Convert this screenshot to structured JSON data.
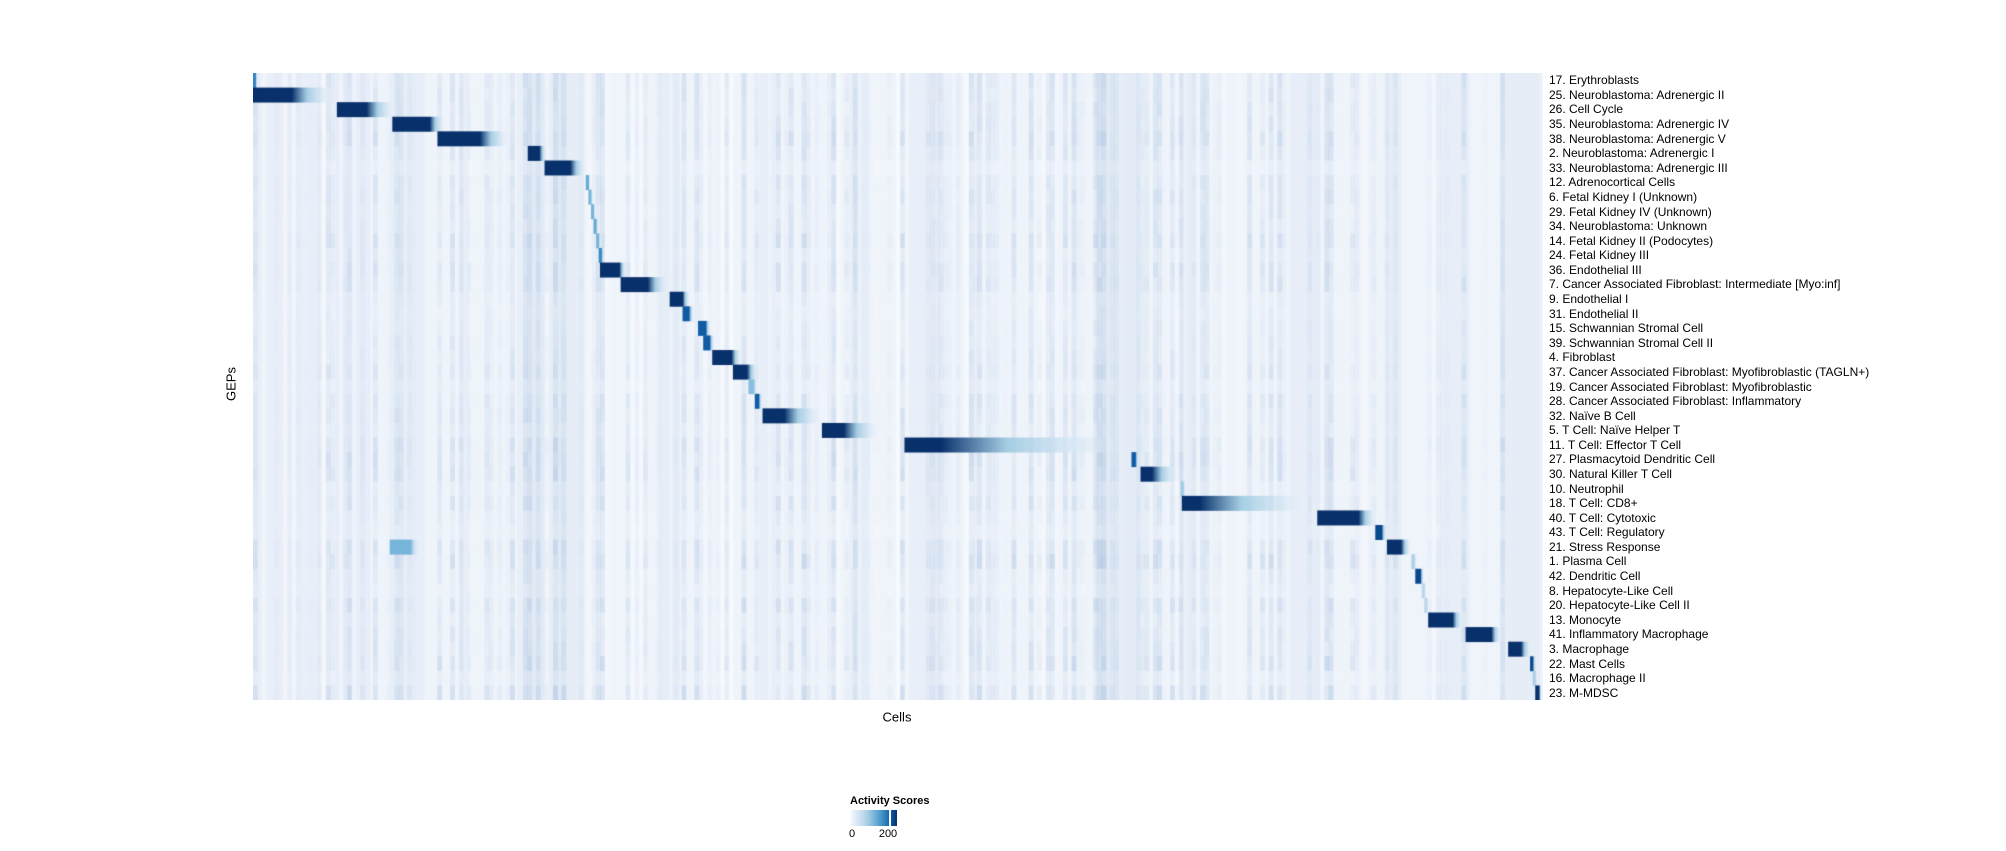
{
  "figure": {
    "xlabel": "Cells",
    "ylabel": "GEPs",
    "legend": {
      "title": "Activity Scores",
      "min_label": "0",
      "max_label": "200"
    }
  },
  "chart_data": {
    "type": "heatmap",
    "title": "",
    "xlabel": "Cells",
    "ylabel": "GEPs",
    "colorbar": {
      "label": "Activity Scores",
      "min": 0,
      "max": 200,
      "tick_values": [
        0,
        200
      ],
      "colormap": "Blues (white to dark navy)"
    },
    "colors": {
      "background": "#eff4fb",
      "min": "#f7fbff",
      "mid": "#4292c6",
      "max": "#08306b",
      "noise": [
        140,
        172,
        212
      ],
      "band": [
        130,
        165,
        210
      ]
    },
    "n_rows": 43,
    "noise_seed": 11,
    "rows": [
      {
        "label": "17. Erythroblasts",
        "blocks": [
          [
            0.0,
            0.002,
            0.004,
            0.75
          ]
        ]
      },
      {
        "label": "25. Neuroblastoma: Adrenergic II",
        "blocks": [
          [
            0.0,
            0.03,
            0.064,
            1
          ]
        ]
      },
      {
        "label": "26. Cell Cycle",
        "blocks": [
          [
            0.065,
            0.088,
            0.112,
            1
          ]
        ]
      },
      {
        "label": "35. Neuroblastoma: Adrenergic IV",
        "blocks": [
          [
            0.108,
            0.137,
            0.149,
            1
          ]
        ]
      },
      {
        "label": "38. Neuroblastoma: Adrenergic V",
        "blocks": [
          [
            0.143,
            0.176,
            0.2,
            1
          ]
        ]
      },
      {
        "label": "2. Neuroblastoma: Adrenergic I",
        "blocks": [
          [
            0.213,
            0.222,
            0.228,
            1
          ]
        ]
      },
      {
        "label": "33. Neuroblastoma: Adrenergic III",
        "blocks": [
          [
            0.226,
            0.246,
            0.259,
            1
          ]
        ]
      },
      {
        "label": "12. Adrenocortical Cells",
        "blocks": [
          [
            0.258,
            0.26,
            0.262,
            0.6
          ]
        ]
      },
      {
        "label": "6. Fetal Kidney I (Unknown)",
        "blocks": [
          [
            0.26,
            0.262,
            0.264,
            0.55
          ]
        ]
      },
      {
        "label": "29. Fetal Kidney IV (Unknown)",
        "blocks": [
          [
            0.262,
            0.264,
            0.266,
            0.55
          ]
        ]
      },
      {
        "label": "34. Neuroblastoma: Unknown",
        "blocks": [
          [
            0.264,
            0.266,
            0.268,
            0.6
          ]
        ]
      },
      {
        "label": "14. Fetal Kidney II (Podocytes)",
        "blocks": [
          [
            0.266,
            0.268,
            0.27,
            0.55
          ]
        ]
      },
      {
        "label": "24. Fetal Kidney III",
        "blocks": [
          [
            0.268,
            0.27,
            0.273,
            0.75
          ]
        ]
      },
      {
        "label": "36. Endothelial III",
        "blocks": [
          [
            0.269,
            0.284,
            0.29,
            1
          ]
        ]
      },
      {
        "label": "7. Cancer Associated Fibroblast: Intermediate [Myo:inf]",
        "blocks": [
          [
            0.285,
            0.306,
            0.323,
            1
          ]
        ]
      },
      {
        "label": "9. Endothelial I",
        "blocks": [
          [
            0.323,
            0.333,
            0.339,
            1
          ]
        ]
      },
      {
        "label": "31. Endothelial II",
        "blocks": [
          [
            0.333,
            0.338,
            0.342,
            0.9
          ]
        ]
      },
      {
        "label": "15. Schwannian Stromal Cell",
        "blocks": [
          [
            0.345,
            0.351,
            0.355,
            0.9
          ]
        ]
      },
      {
        "label": "39. Schwannian Stromal Cell II",
        "blocks": [
          [
            0.349,
            0.354,
            0.358,
            0.9
          ]
        ]
      },
      {
        "label": "4. Fibroblast",
        "blocks": [
          [
            0.356,
            0.371,
            0.379,
            1
          ]
        ]
      },
      {
        "label": "37. Cancer Associated Fibroblast: Myofibroblastic (TAGLN+)",
        "blocks": [
          [
            0.372,
            0.383,
            0.392,
            1
          ]
        ]
      },
      {
        "label": "19. Cancer Associated Fibroblast: Myofibroblastic",
        "blocks": [
          [
            0.384,
            0.388,
            0.392,
            0.5
          ]
        ]
      },
      {
        "label": "28. Cancer Associated Fibroblast: Inflammatory",
        "blocks": [
          [
            0.389,
            0.392,
            0.395,
            0.9
          ]
        ]
      },
      {
        "label": "32. Naïve B Cell",
        "blocks": [
          [
            0.395,
            0.412,
            0.442,
            1
          ]
        ]
      },
      {
        "label": "5. T Cell: Naïve Helper T",
        "blocks": [
          [
            0.441,
            0.458,
            0.487,
            1
          ]
        ]
      },
      {
        "label": "11. T Cell: Effector T Cell",
        "blocks": [
          [
            0.505,
            0.533,
            0.682,
            1
          ]
        ]
      },
      {
        "label": "27. Plasmacytoid Dendritic Cell",
        "blocks": [
          [
            0.681,
            0.684,
            0.687,
            0.9
          ]
        ]
      },
      {
        "label": "30. Natural Killer T Cell",
        "blocks": [
          [
            0.688,
            0.697,
            0.718,
            1
          ]
        ]
      },
      {
        "label": "10. Neutrophil",
        "blocks": [
          [
            0.719,
            0.721,
            0.724,
            0.45
          ]
        ]
      },
      {
        "label": "18. T Cell: CD8+",
        "blocks": [
          [
            0.72,
            0.734,
            0.826,
            1
          ]
        ]
      },
      {
        "label": "40. T Cell: Cytotoxic",
        "blocks": [
          [
            0.825,
            0.857,
            0.872,
            1
          ]
        ]
      },
      {
        "label": "43. T Cell: Regulatory",
        "blocks": [
          [
            0.87,
            0.875,
            0.879,
            0.95
          ]
        ]
      },
      {
        "label": "21. Stress Response",
        "blocks": [
          [
            0.879,
            0.89,
            0.898,
            1
          ],
          [
            0.106,
            0.122,
            0.131,
            0.55
          ]
        ]
      },
      {
        "label": "1. Plasma Cell",
        "blocks": [
          [
            0.898,
            0.9,
            0.903,
            0.4
          ]
        ]
      },
      {
        "label": "42. Dendritic Cell",
        "blocks": [
          [
            0.901,
            0.905,
            0.908,
            0.95
          ]
        ]
      },
      {
        "label": "8. Hepatocyte-Like Cell",
        "blocks": [
          [
            0.906,
            0.908,
            0.91,
            0.35
          ]
        ]
      },
      {
        "label": "20. Hepatocyte-Like Cell II",
        "blocks": [
          [
            0.908,
            0.91,
            0.912,
            0.35
          ]
        ]
      },
      {
        "label": "13. Monocyte",
        "blocks": [
          [
            0.911,
            0.93,
            0.938,
            1
          ]
        ]
      },
      {
        "label": "41. Inflammatory Macrophage",
        "blocks": [
          [
            0.94,
            0.96,
            0.968,
            1
          ]
        ]
      },
      {
        "label": "3. Macrophage",
        "blocks": [
          [
            0.973,
            0.983,
            0.991,
            1
          ]
        ]
      },
      {
        "label": "22. Mast Cells",
        "blocks": [
          [
            0.99,
            0.992,
            0.995,
            0.95
          ]
        ]
      },
      {
        "label": "16. Macrophage II",
        "blocks": [
          [
            0.992,
            0.994,
            0.996,
            0.4
          ]
        ]
      },
      {
        "label": "23. M-MDSC",
        "blocks": [
          [
            0.994,
            0.997,
            0.999,
            1
          ]
        ]
      }
    ],
    "column_bands": [
      [
        0.0,
        0.052,
        0.05
      ],
      [
        0.064,
        0.091,
        0.05
      ],
      [
        0.106,
        0.133,
        0.07
      ],
      [
        0.16,
        0.168,
        0.07
      ],
      [
        0.205,
        0.213,
        0.06
      ],
      [
        0.213,
        0.226,
        0.12
      ],
      [
        0.23,
        0.257,
        0.08
      ],
      [
        0.315,
        0.331,
        0.09
      ],
      [
        0.393,
        0.405,
        0.07
      ],
      [
        0.463,
        0.478,
        0.07
      ],
      [
        0.505,
        0.533,
        0.05
      ],
      [
        0.653,
        0.691,
        0.1
      ],
      [
        0.719,
        0.731,
        0.08
      ],
      [
        0.804,
        0.827,
        0.07
      ],
      [
        0.878,
        0.89,
        0.08
      ],
      [
        0.92,
        0.943,
        0.07
      ],
      [
        0.967,
        0.998,
        0.08
      ]
    ]
  }
}
